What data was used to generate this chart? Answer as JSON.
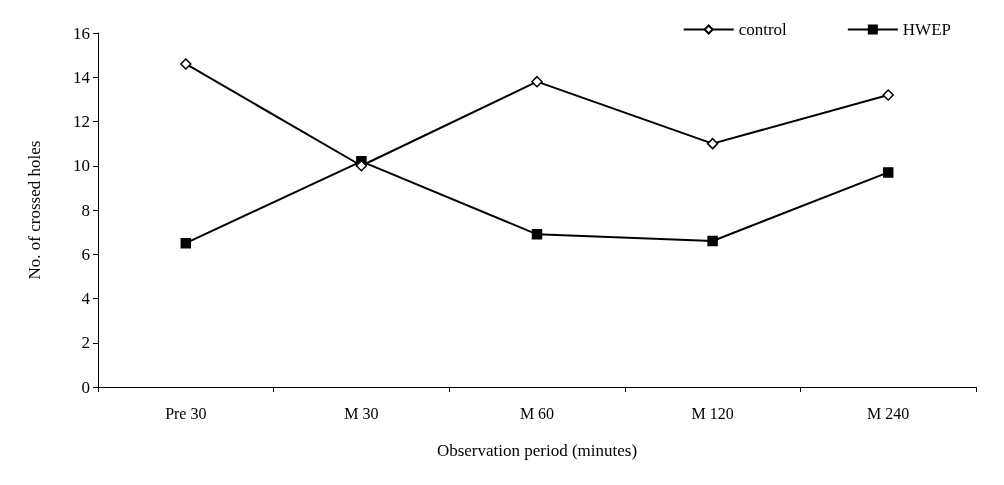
{
  "chart_data": {
    "type": "line",
    "xlabel": "Observation period (minutes)",
    "ylabel": "No. of crossed holes",
    "categories": [
      "Pre 30",
      "M 30",
      "M 60",
      "M 120",
      "M 240"
    ],
    "series": [
      {
        "name": "control",
        "color": "#000000",
        "marker": "diamond",
        "values": [
          14.6,
          10.0,
          13.8,
          11.0,
          13.2
        ]
      },
      {
        "name": "HWEP",
        "color": "#000000",
        "marker": "square",
        "values": [
          6.5,
          10.2,
          6.9,
          6.6,
          9.7
        ]
      }
    ],
    "ylim": [
      0,
      16
    ],
    "yticks": [
      0,
      2,
      4,
      6,
      8,
      10,
      12,
      14,
      16
    ],
    "grid": false,
    "legend": "top right",
    "line_style": "solid"
  }
}
